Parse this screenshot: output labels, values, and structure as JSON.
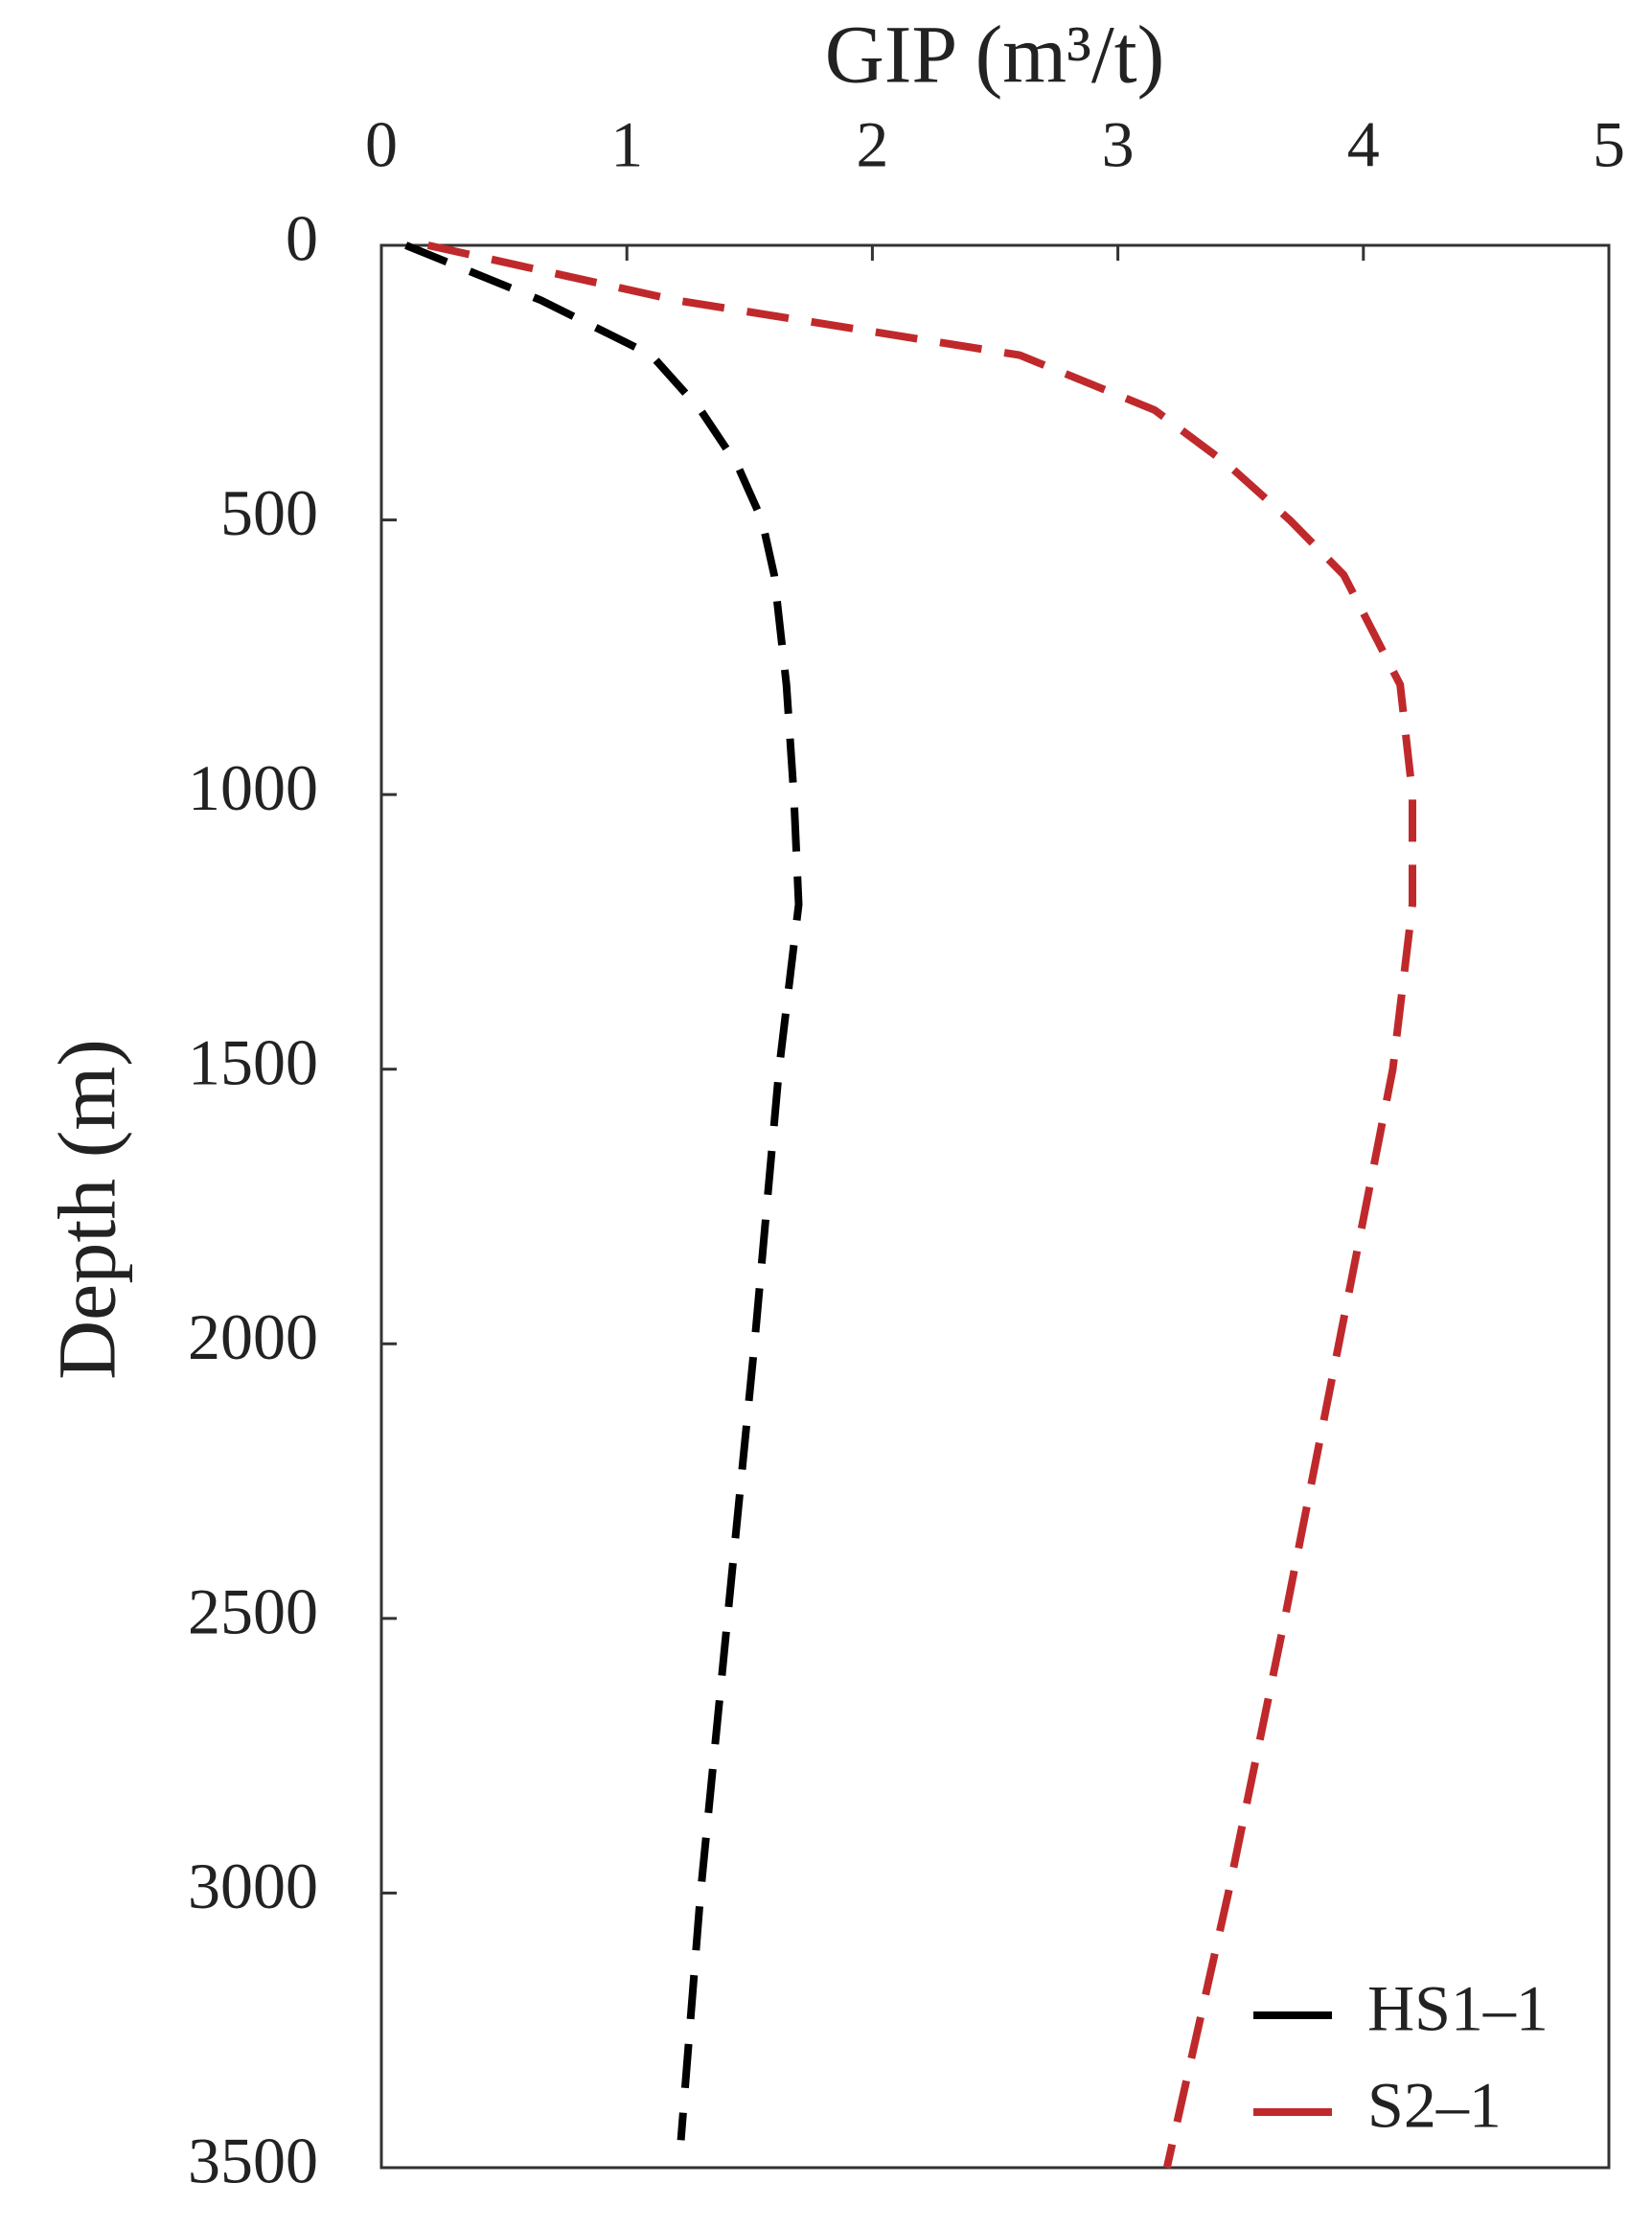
{
  "chart_data": {
    "type": "line",
    "title": "GIP (m³/t)",
    "y_label": "Depth (m)",
    "xlim": [
      0,
      5
    ],
    "xticks": [
      0,
      1,
      2,
      3,
      4,
      5
    ],
    "ylim": [
      0,
      3500
    ],
    "yticks": [
      0,
      500,
      1000,
      1500,
      2000,
      2500,
      3000,
      3500
    ],
    "y_inverted": true,
    "x_axis_position": "top",
    "legend": "lower right",
    "series": [
      {
        "name": "HS1–1",
        "color": "#000000",
        "y": [
          0,
          100,
          200,
          300,
          400,
          500,
          600,
          800,
          1000,
          1200,
          1500,
          2000,
          2500,
          3000,
          3450
        ],
        "values": [
          0.1,
          0.65,
          1.1,
          1.3,
          1.45,
          1.55,
          1.6,
          1.65,
          1.68,
          1.7,
          1.62,
          1.52,
          1.41,
          1.3,
          1.22
        ]
      },
      {
        "name": "S2–1",
        "color": "#c0292b",
        "y": [
          0,
          100,
          200,
          300,
          400,
          500,
          600,
          800,
          1000,
          1200,
          1500,
          2000,
          2500,
          3000,
          3500
        ],
        "values": [
          0.19,
          1.2,
          2.6,
          3.15,
          3.45,
          3.7,
          3.92,
          4.15,
          4.2,
          4.2,
          4.12,
          3.9,
          3.68,
          3.45,
          3.2
        ]
      }
    ]
  }
}
